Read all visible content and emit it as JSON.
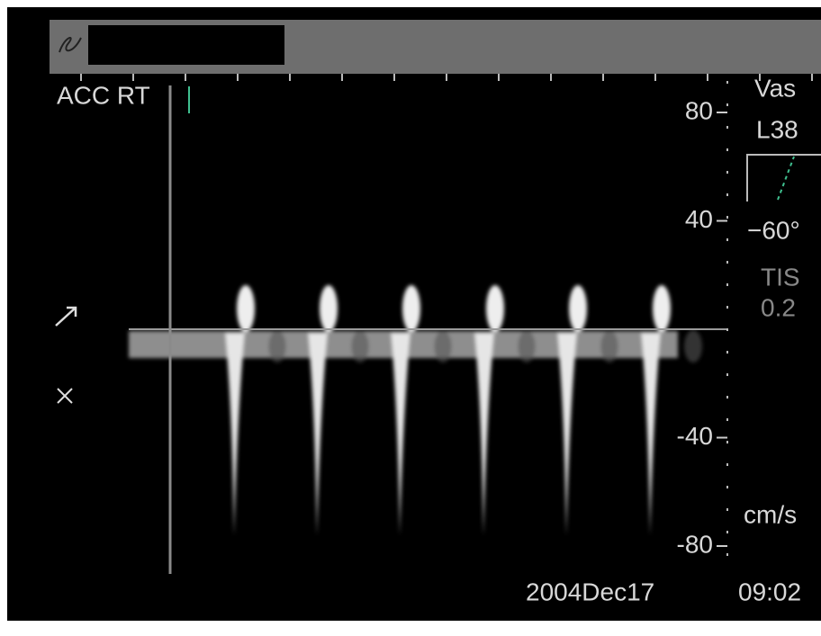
{
  "texts": {
    "site": "ACC RT",
    "preset": "Vas",
    "probe": "L38",
    "angle": "−60°",
    "tis_label": "TIS",
    "tis_value": "0.2",
    "unit": "cm/s",
    "date": "2004Dec17",
    "time": "09:02"
  },
  "scale": {
    "range": [
      -80,
      80
    ],
    "ticks": [
      80,
      40,
      -40,
      -80
    ]
  }
}
